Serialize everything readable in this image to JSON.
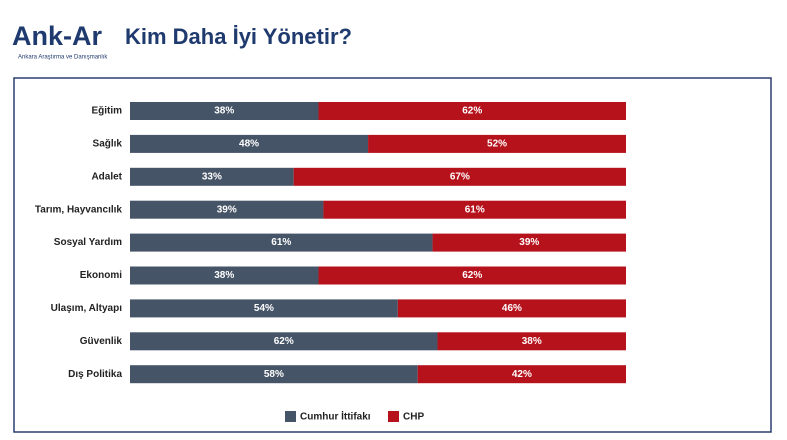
{
  "logo": {
    "name": "Ank-Ar",
    "tagline": "Ankara Araştırma ve Danışmanlık"
  },
  "chart_data": {
    "type": "stacked-bar",
    "orientation": "horizontal",
    "title": "Kim Daha İyi Yönetir?",
    "categories": [
      "Eğitim",
      "Sağlık",
      "Adalet",
      "Tarım, Hayvancılık",
      "Sosyal Yardım",
      "Ekonomi",
      "Ulaşım, Altyapı",
      "Güvenlik",
      "Dış Politika"
    ],
    "xlim": [
      0,
      100
    ],
    "series": [
      {
        "name": "Cumhur İttifakı",
        "color": "#465467",
        "values": [
          38,
          48,
          33,
          39,
          61,
          38,
          54,
          62,
          58
        ],
        "value_labels": [
          "38%",
          "48%",
          "33%",
          "39%",
          "61%",
          "38%",
          "54%",
          "62%",
          "58%"
        ]
      },
      {
        "name": "CHP",
        "color": "#b5121b",
        "values": [
          62,
          52,
          67,
          61,
          39,
          62,
          46,
          38,
          42
        ],
        "value_labels": [
          "62%",
          "52%",
          "67%",
          "61%",
          "39%",
          "62%",
          "46%",
          "38%",
          "42%"
        ]
      }
    ]
  }
}
